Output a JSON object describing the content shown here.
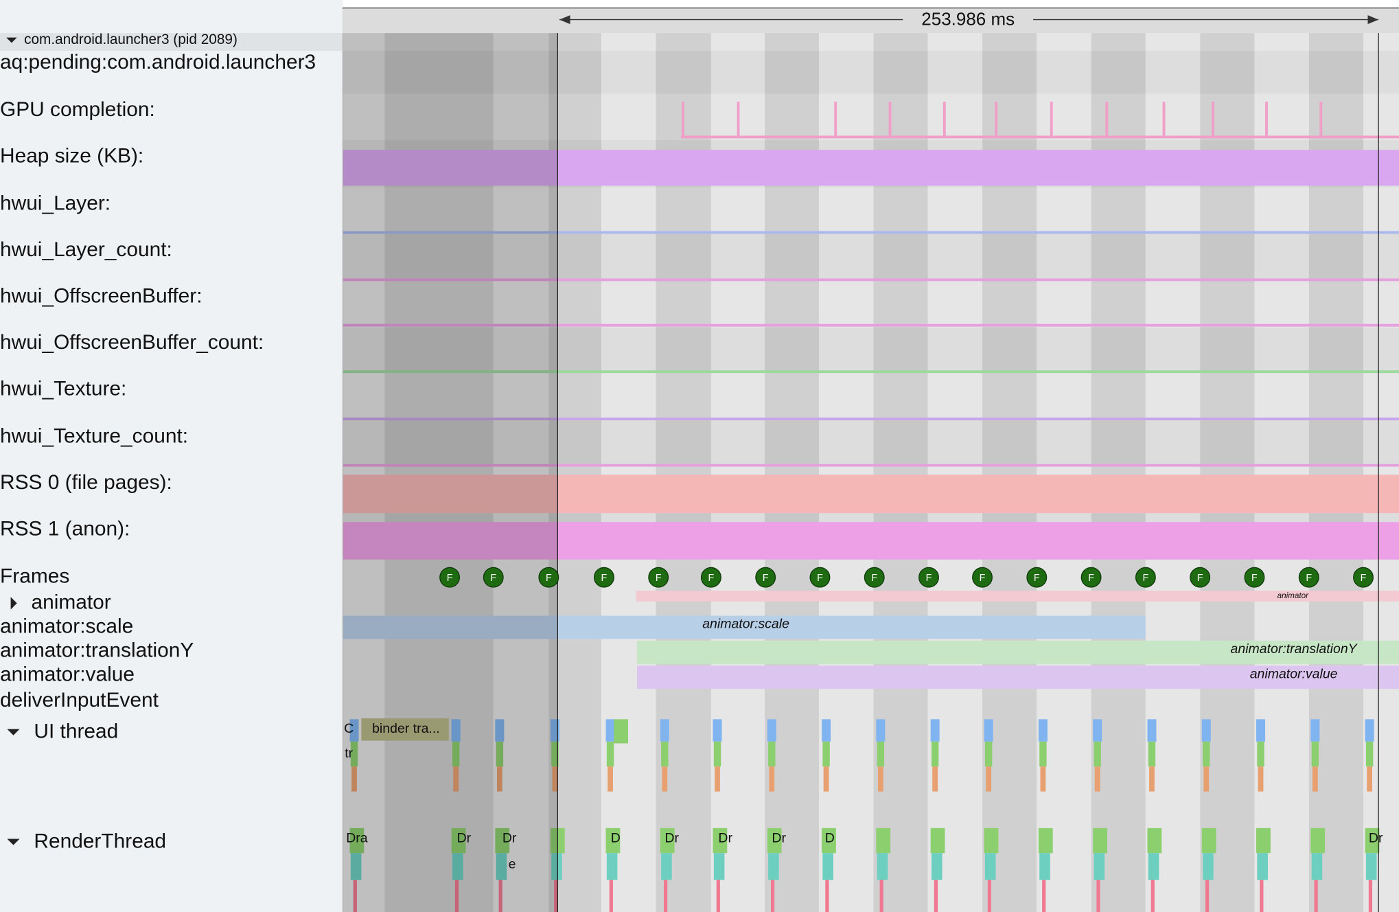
{
  "header": {
    "process": "com.android.launcher3 (pid 2089)",
    "duration": "253.986 ms"
  },
  "tracks": [
    {
      "label": "aq:pending:com.android.launcher3"
    },
    {
      "label": "GPU completion:"
    },
    {
      "label": "Heap size (KB):"
    },
    {
      "label": "hwui_Layer:"
    },
    {
      "label": "hwui_Layer_count:"
    },
    {
      "label": "hwui_OffscreenBuffer:"
    },
    {
      "label": "hwui_OffscreenBuffer_count:"
    },
    {
      "label": "hwui_Texture:"
    },
    {
      "label": "hwui_Texture_count:"
    },
    {
      "label": "RSS 0 (file pages):"
    },
    {
      "label": "RSS 1 (anon):"
    }
  ],
  "frames": {
    "label": "Frames",
    "markers": [
      "F",
      "F",
      "F",
      "F",
      "F",
      "F",
      "F",
      "F",
      "F",
      "F",
      "F",
      "F",
      "F",
      "F",
      "F",
      "F",
      "F",
      "F"
    ]
  },
  "subtracks": [
    {
      "label": "animator"
    },
    {
      "label": "animator:scale"
    },
    {
      "label": "animator:translationY"
    },
    {
      "label": "animator:value"
    },
    {
      "label": "deliverInputEvent"
    }
  ],
  "threads": [
    {
      "label": "UI thread"
    },
    {
      "label": "RenderThread"
    }
  ],
  "slices": [
    {
      "label": "animator"
    },
    {
      "label": "animator:scale"
    },
    {
      "label": "animator:translationY"
    },
    {
      "label": "animator:value"
    },
    {
      "label": "binder tra..."
    },
    {
      "label": "C"
    },
    {
      "label": "tr"
    },
    {
      "label": "Dra"
    },
    {
      "label": "Dr"
    },
    {
      "label": "Dr"
    },
    {
      "label": "e"
    },
    {
      "label": "D"
    },
    {
      "label": "Dr"
    },
    {
      "label": "Dr"
    },
    {
      "label": "Dr"
    },
    {
      "label": "D"
    },
    {
      "label": "Dr"
    }
  ]
}
